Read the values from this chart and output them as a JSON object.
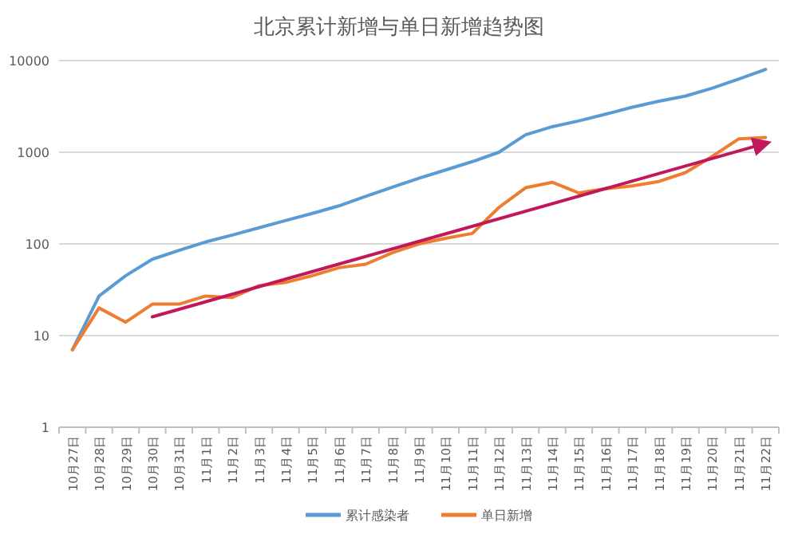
{
  "chart_data": {
    "type": "line",
    "title": "北京累计新增与单日新增趋势图",
    "categories": [
      "10月27日",
      "10月28日",
      "10月29日",
      "10月30日",
      "10月31日",
      "11月1日",
      "11月2日",
      "11月3日",
      "11月4日",
      "11月5日",
      "11月6日",
      "11月7日",
      "11月8日",
      "11月9日",
      "11月10日",
      "11月11日",
      "11月12日",
      "11月13日",
      "11月14日",
      "11月15日",
      "11月16日",
      "11月17日",
      "11月18日",
      "11月19日",
      "11月20日",
      "11月21日",
      "11月22日"
    ],
    "series": [
      {
        "name": "累计感染者",
        "color": "#5b9bd5",
        "values": [
          7,
          27,
          45,
          68,
          85,
          105,
          125,
          150,
          180,
          215,
          260,
          330,
          415,
          520,
          640,
          790,
          1000,
          1550,
          1900,
          2200,
          2600,
          3100,
          3600,
          4100,
          5000,
          6300,
          8000
        ]
      },
      {
        "name": "单日新增",
        "color": "#ed7d31",
        "values": [
          7,
          20,
          14,
          22,
          22,
          27,
          26,
          35,
          38,
          45,
          55,
          60,
          80,
          100,
          115,
          130,
          250,
          410,
          470,
          360,
          400,
          430,
          480,
          600,
          900,
          1400,
          1450
        ]
      },
      {
        "type": "line",
        "color": "#c2185b",
        "x": [
          "10月30日",
          "11月22日"
        ],
        "values": [
          16,
          1250
        ]
      }
    ],
    "log": true,
    "ylim": [
      1,
      10000
    ],
    "yticks": [
      1,
      10,
      100,
      1000,
      10000
    ],
    "grid": "y",
    "legend": "bottom",
    "marker": "none",
    "line_style": "solid"
  }
}
